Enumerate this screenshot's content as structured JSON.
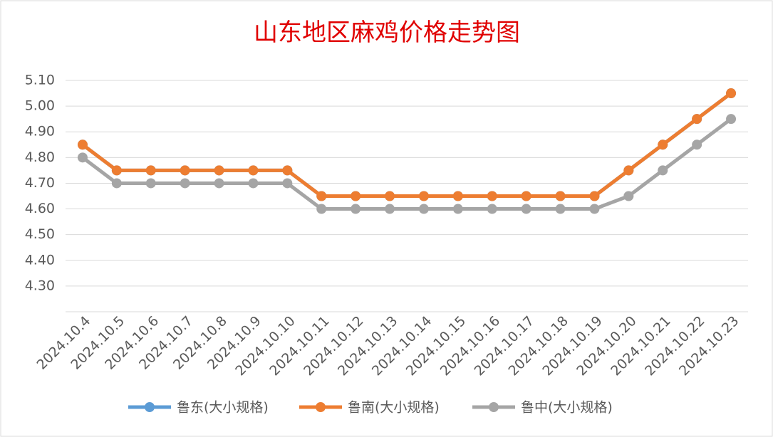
{
  "chart_data": {
    "type": "line",
    "title": "山东地区麻鸡价格走势图",
    "categories": [
      "2024.10.4",
      "2024.10.5",
      "2024.10.6",
      "2024.10.7",
      "2024.10.8",
      "2024.10.9",
      "2024.10.10",
      "2024.10.11",
      "2024.10.12",
      "2024.10.13",
      "2024.10.14",
      "2024.10.15",
      "2024.10.16",
      "2024.10.17",
      "2024.10.18",
      "2024.10.19",
      "2024.10.20",
      "2024.10.21",
      "2024.10.22",
      "2024.10.23"
    ],
    "series": [
      {
        "name": "鲁东(大小规格)",
        "color": "#5b9bd5",
        "values": [
          4.85,
          4.75,
          4.75,
          4.75,
          4.75,
          4.75,
          4.75,
          4.65,
          4.65,
          4.65,
          4.65,
          4.65,
          4.65,
          4.65,
          4.65,
          4.65,
          4.75,
          4.85,
          4.95,
          5.05
        ]
      },
      {
        "name": "鲁南(大小规格)",
        "color": "#ed7d31",
        "values": [
          4.85,
          4.75,
          4.75,
          4.75,
          4.75,
          4.75,
          4.75,
          4.65,
          4.65,
          4.65,
          4.65,
          4.65,
          4.65,
          4.65,
          4.65,
          4.65,
          4.75,
          4.85,
          4.95,
          5.05
        ]
      },
      {
        "name": "鲁中(大小规格)",
        "color": "#a5a5a5",
        "values": [
          4.8,
          4.7,
          4.7,
          4.7,
          4.7,
          4.7,
          4.7,
          4.6,
          4.6,
          4.6,
          4.6,
          4.6,
          4.6,
          4.6,
          4.6,
          4.6,
          4.65,
          4.75,
          4.85,
          4.95
        ]
      }
    ],
    "ylim": [
      4.2,
      5.1
    ],
    "yticks": [
      {
        "value": 4.3,
        "label": "4.30"
      },
      {
        "value": 4.4,
        "label": "4.40"
      },
      {
        "value": 4.5,
        "label": "4.50"
      },
      {
        "value": 4.6,
        "label": "4.60"
      },
      {
        "value": 4.7,
        "label": "4.70"
      },
      {
        "value": 4.8,
        "label": "4.80"
      },
      {
        "value": 4.9,
        "label": "4.90"
      },
      {
        "value": 5.0,
        "label": "5.00"
      },
      {
        "value": 5.1,
        "label": "5.10"
      }
    ],
    "grid": true,
    "legend": "bottom"
  }
}
